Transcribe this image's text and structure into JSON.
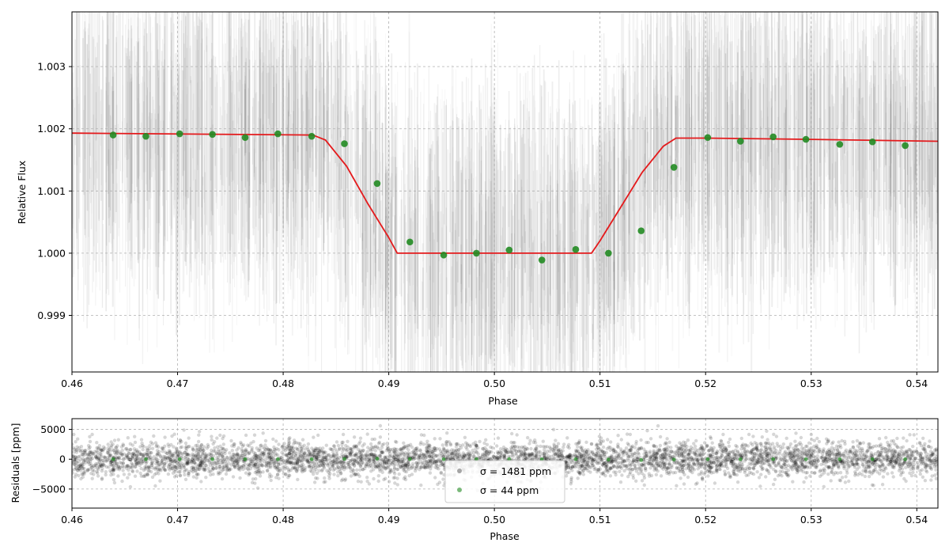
{
  "chart_data": [
    {
      "type": "scatter",
      "xlabel": "Phase",
      "ylabel": "Relative Flux",
      "xlim": [
        0.46,
        0.542
      ],
      "ylim": [
        0.99809,
        1.00388
      ],
      "xticks": [
        "0.46",
        "0.47",
        "0.48",
        "0.49",
        "0.50",
        "0.51",
        "0.52",
        "0.53",
        "0.54"
      ],
      "yticks": [
        "0.999",
        "1.000",
        "1.001",
        "1.002",
        "1.003"
      ],
      "grid": true,
      "series": [
        {
          "kind": "raw-data",
          "color": "#000000",
          "note_points": "dense low-alpha vertical streaks of unbinned flux"
        },
        {
          "kind": "binned",
          "color": "#228B22",
          "x": [
            0.4639,
            0.467,
            0.4702,
            0.4733,
            0.4764,
            0.4795,
            0.4827,
            0.4858,
            0.4889,
            0.492,
            0.4952,
            0.4983,
            0.5014,
            0.5045,
            0.5077,
            0.5108,
            0.5139,
            0.517,
            0.5202,
            0.5233,
            0.5264,
            0.5295,
            0.5327,
            0.5358,
            0.5389
          ],
          "y": [
            1.0019,
            1.00188,
            1.00192,
            1.00191,
            1.00186,
            1.00192,
            1.00188,
            1.00176,
            1.00112,
            1.00018,
            0.99997,
            1.0,
            1.00005,
            0.99989,
            1.00006,
            1.0,
            1.00036,
            1.00138,
            1.00186,
            1.0018,
            1.00187,
            1.00183,
            1.00175,
            1.00179,
            1.00173
          ]
        },
        {
          "kind": "model",
          "color": "#e41a1c",
          "x": [
            0.46,
            0.4828,
            0.484,
            0.486,
            0.488,
            0.49,
            0.4908,
            0.5,
            0.5092,
            0.51,
            0.512,
            0.514,
            0.516,
            0.5172,
            0.52,
            0.53,
            0.542
          ],
          "y": [
            1.00193,
            1.0019,
            1.00182,
            1.0014,
            1.0008,
            1.00025,
            1.0,
            1.0,
            1.0,
            1.0002,
            1.00075,
            1.0013,
            1.00172,
            1.00185,
            1.00185,
            1.00183,
            1.0018
          ]
        }
      ]
    },
    {
      "type": "scatter",
      "xlabel": "Phase",
      "ylabel": "Residuals [ppm]",
      "xlim": [
        0.46,
        0.542
      ],
      "ylim": [
        -8200,
        6800
      ],
      "xticks": [
        "0.46",
        "0.47",
        "0.48",
        "0.49",
        "0.50",
        "0.51",
        "0.52",
        "0.53",
        "0.54"
      ],
      "yticks": [
        "−5000",
        "0",
        "5000"
      ],
      "grid": true,
      "legend_position": "lower-center",
      "legend": [
        {
          "label": "σ = 1481 ppm",
          "color": "#000000",
          "sigma": 1481
        },
        {
          "label": "σ = 44 ppm",
          "color": "#228B22",
          "sigma": 44
        }
      ]
    }
  ]
}
